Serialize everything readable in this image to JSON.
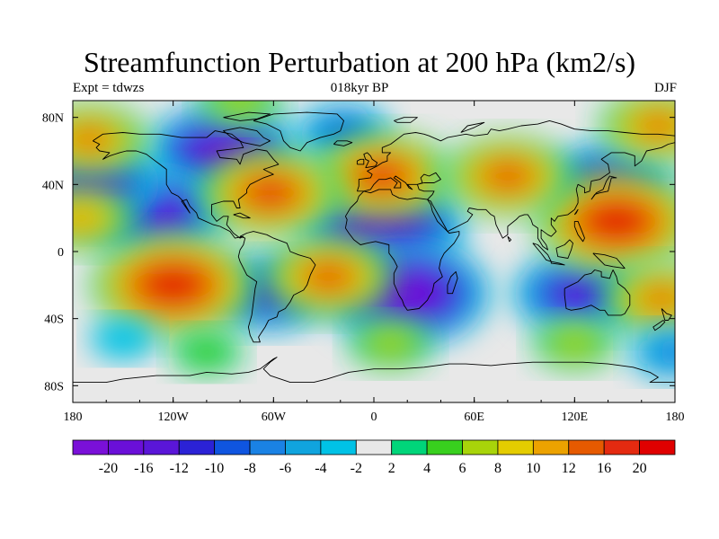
{
  "title": "Streamfunction Perturbation at 200 hPa (km2/s)",
  "left_label": "Expt = tdwzs",
  "center_label": "018kyr BP",
  "right_label": "DJF",
  "map": {
    "lon_ticks": [
      {
        "lon": -180,
        "label": "180"
      },
      {
        "lon": -120,
        "label": "120W"
      },
      {
        "lon": -60,
        "label": "60W"
      },
      {
        "lon": 0,
        "label": "0"
      },
      {
        "lon": 60,
        "label": "60E"
      },
      {
        "lon": 120,
        "label": "120E"
      },
      {
        "lon": 180,
        "label": "180"
      }
    ],
    "lat_ticks": [
      {
        "lat": 80,
        "label": "80N"
      },
      {
        "lat": 40,
        "label": "40N"
      },
      {
        "lat": 0,
        "label": "0"
      },
      {
        "lat": -40,
        "label": "40S"
      },
      {
        "lat": -80,
        "label": "80S"
      }
    ],
    "lon_range": [
      -180,
      180
    ],
    "lat_range": [
      -90,
      90
    ]
  },
  "colorbar": {
    "boundaries": [
      "-20",
      "-16",
      "-12",
      "-10",
      "-8",
      "-6",
      "-4",
      "-2",
      "2",
      "4",
      "6",
      "8",
      "10",
      "12",
      "16",
      "20"
    ],
    "colors": [
      "#7a10d8",
      "#6a0fd8",
      "#5a16d8",
      "#2b22d6",
      "#0f55e0",
      "#1a82e4",
      "#10a4de",
      "#00c2e6",
      "#e8e8e8",
      "#00d57a",
      "#38d01e",
      "#a8d40a",
      "#e4cc00",
      "#eca200",
      "#e65a00",
      "#e42a10",
      "#e00000"
    ]
  },
  "chart_data": {
    "type": "heatmap",
    "title": "Streamfunction Perturbation at 200 hPa (km2/s)",
    "variable": "streamfunction perturbation",
    "level": "200 hPa",
    "units": "km2/s",
    "experiment": "tdwzs",
    "time_slice": "018kyr BP",
    "season": "DJF",
    "levels": [
      -20,
      -16,
      -12,
      -10,
      -8,
      -6,
      -4,
      -2,
      2,
      4,
      6,
      8,
      10,
      12,
      16,
      20
    ],
    "features": [
      {
        "lon": -90,
        "lat": 59,
        "value": -18
      },
      {
        "lon": -130,
        "lat": 23,
        "value": -16
      },
      {
        "lon": -170,
        "lat": 40,
        "value": -16
      },
      {
        "lon": 5,
        "lat": 15,
        "value": -20
      },
      {
        "lon": 20,
        "lat": -25,
        "value": -20
      },
      {
        "lon": -63,
        "lat": -25,
        "value": -12
      },
      {
        "lon": 122,
        "lat": -25,
        "value": -14
      },
      {
        "lon": 140,
        "lat": 40,
        "value": -14
      },
      {
        "lon": -18,
        "lat": 70,
        "value": -8
      },
      {
        "lon": -120,
        "lat": -20,
        "value": 20
      },
      {
        "lon": 145,
        "lat": 18,
        "value": 20
      },
      {
        "lon": 5,
        "lat": 45,
        "value": 16
      },
      {
        "lon": -62,
        "lat": 35,
        "value": 16
      },
      {
        "lon": -27,
        "lat": -15,
        "value": 14
      },
      {
        "lon": 80,
        "lat": 45,
        "value": 14
      },
      {
        "lon": -170,
        "lat": 67,
        "value": 12
      },
      {
        "lon": 170,
        "lat": 75,
        "value": 12
      },
      {
        "lon": 172,
        "lat": -28,
        "value": 12
      },
      {
        "lon": -80,
        "lat": 90,
        "value": 6
      },
      {
        "lon": 10,
        "lat": -55,
        "value": 6
      },
      {
        "lon": 120,
        "lat": -55,
        "value": 6
      },
      {
        "lon": -100,
        "lat": -60,
        "value": 4
      },
      {
        "lon": 178,
        "lat": -60,
        "value": -6
      },
      {
        "lon": -175,
        "lat": 20,
        "value": 10
      },
      {
        "lon": -150,
        "lat": -52,
        "value": -3
      }
    ]
  }
}
